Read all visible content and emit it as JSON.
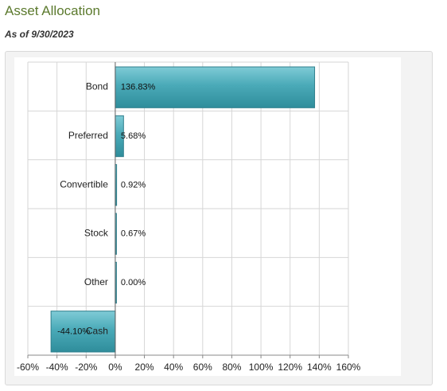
{
  "page": {
    "title": "Asset Allocation",
    "subtitle": "As of 9/30/2023"
  },
  "chart_data": {
    "type": "bar",
    "orientation": "horizontal",
    "categories": [
      "Bond",
      "Preferred",
      "Convertible",
      "Stock",
      "Other",
      "Cash"
    ],
    "values": [
      136.83,
      5.68,
      0.92,
      0.67,
      0.0,
      -44.1
    ],
    "value_labels": [
      "136.83%",
      "5.68%",
      "0.92%",
      "0.67%",
      "0.00%",
      "-44.10%"
    ],
    "xlim": [
      -60,
      160
    ],
    "x_ticks": [
      -60,
      -40,
      -20,
      0,
      20,
      40,
      60,
      80,
      100,
      120,
      140,
      160
    ],
    "x_tick_labels": [
      "-60%",
      "-40%",
      "-20%",
      "0%",
      "20%",
      "40%",
      "60%",
      "80%",
      "100%",
      "120%",
      "140%",
      "160%"
    ],
    "grid": true,
    "colors": {
      "bar_fill": "#4aaab8",
      "bar_stroke": "#2f7f8c",
      "grid": "#d6d6d6",
      "axis": "#888888"
    }
  }
}
